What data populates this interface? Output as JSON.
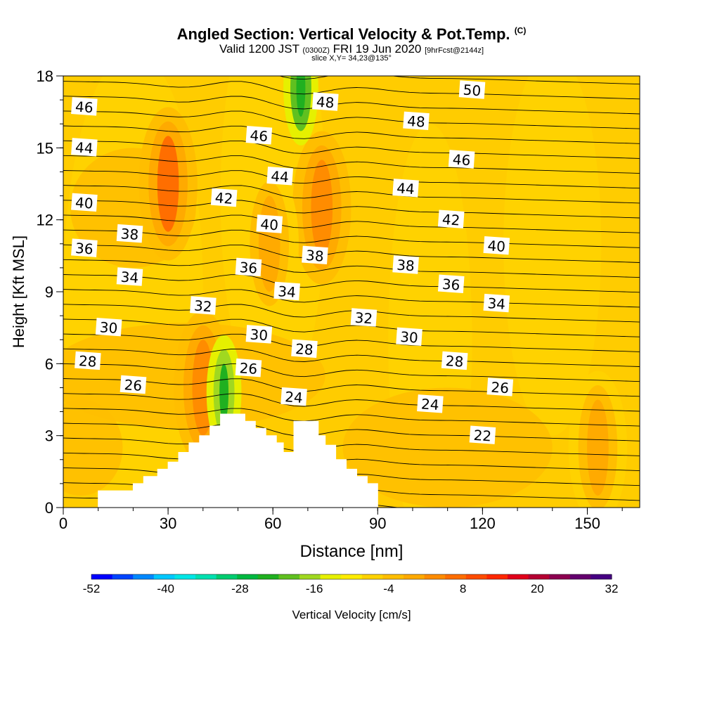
{
  "title": {
    "main": "Angled Section: Vertical Velocity & Pot.Temp.",
    "main_unit": "(C)",
    "valid_prefix": "Valid 1200 JST",
    "valid_utc": "(0300Z)",
    "valid_date": "FRI 19 Jun 2020",
    "forecast": "[9hrFcst@2144z]",
    "slice": "slice X,Y= 34,23@135°"
  },
  "chart_data": {
    "type": "heatmap",
    "xlabel": "Distance [nm]",
    "ylabel": "Height [Kft MSL]",
    "xlim": [
      0,
      165
    ],
    "ylim": [
      0,
      18
    ],
    "x_ticks": [
      0,
      30,
      60,
      90,
      120,
      150
    ],
    "y_ticks": [
      0,
      3,
      6,
      9,
      12,
      15,
      18
    ],
    "colorbar": {
      "label": "Vertical Velocity [cm/s]",
      "range": [
        -52,
        32
      ],
      "step": 4,
      "tick_labels": [
        "-52",
        "-40",
        "-28",
        "-16",
        "-4",
        "8",
        "20",
        "32"
      ],
      "colors": [
        "#0000ff",
        "#0044ff",
        "#0088ff",
        "#00c8ff",
        "#00e6e6",
        "#00e0b0",
        "#00cc70",
        "#00b840",
        "#20b020",
        "#60c020",
        "#a0d820",
        "#e6f000",
        "#ffec00",
        "#ffd200",
        "#ffbe00",
        "#ffaa00",
        "#ff8c00",
        "#ff6e00",
        "#ff4c00",
        "#ff2800",
        "#e0001a",
        "#b40032",
        "#8c0050",
        "#64006e",
        "#460082"
      ]
    },
    "terrain": [
      [
        10,
        0.7
      ],
      [
        20,
        0.7
      ],
      [
        20,
        1.0
      ],
      [
        23,
        1.0
      ],
      [
        23,
        1.3
      ],
      [
        27,
        1.3
      ],
      [
        27,
        1.6
      ],
      [
        30,
        1.6
      ],
      [
        30,
        1.9
      ],
      [
        33,
        1.9
      ],
      [
        33,
        2.3
      ],
      [
        36,
        2.3
      ],
      [
        36,
        2.7
      ],
      [
        39,
        2.7
      ],
      [
        39,
        3.0
      ],
      [
        42,
        3.0
      ],
      [
        42,
        3.4
      ],
      [
        45,
        3.4
      ],
      [
        45,
        3.9
      ],
      [
        52,
        3.9
      ],
      [
        52,
        3.6
      ],
      [
        55,
        3.6
      ],
      [
        55,
        3.3
      ],
      [
        58,
        3.3
      ],
      [
        58,
        3.0
      ],
      [
        61,
        3.0
      ],
      [
        61,
        2.7
      ],
      [
        63,
        2.7
      ],
      [
        63,
        2.3
      ],
      [
        66,
        2.3
      ],
      [
        66,
        3.6
      ],
      [
        73,
        3.6
      ],
      [
        73,
        3.0
      ],
      [
        75,
        3.0
      ],
      [
        75,
        2.6
      ],
      [
        78,
        2.6
      ],
      [
        78,
        2.0
      ],
      [
        81,
        2.0
      ],
      [
        81,
        1.6
      ],
      [
        84,
        1.6
      ],
      [
        84,
        1.3
      ],
      [
        87,
        1.3
      ],
      [
        87,
        1.0
      ],
      [
        90,
        1.0
      ]
    ],
    "isentropes": [
      {
        "theta": 22,
        "label_at": [
          120,
          3.0
        ]
      },
      {
        "theta": 24,
        "label_at": [
          66,
          4.6
        ]
      },
      {
        "theta": 24,
        "label_at": [
          105,
          4.3
        ]
      },
      {
        "theta": 26,
        "label_at": [
          20,
          5.1
        ]
      },
      {
        "theta": 26,
        "label_at": [
          53,
          5.8
        ]
      },
      {
        "theta": 26,
        "label_at": [
          125,
          5.0
        ]
      },
      {
        "theta": 28,
        "label_at": [
          7,
          6.1
        ]
      },
      {
        "theta": 28,
        "label_at": [
          69,
          6.6
        ]
      },
      {
        "theta": 28,
        "label_at": [
          112,
          6.1
        ]
      },
      {
        "theta": 30,
        "label_at": [
          13,
          7.5
        ]
      },
      {
        "theta": 30,
        "label_at": [
          56,
          7.2
        ]
      },
      {
        "theta": 30,
        "label_at": [
          99,
          7.1
        ]
      },
      {
        "theta": 32,
        "label_at": [
          40,
          8.4
        ]
      },
      {
        "theta": 32,
        "label_at": [
          86,
          7.9
        ]
      },
      {
        "theta": 34,
        "label_at": [
          19,
          9.6
        ]
      },
      {
        "theta": 34,
        "label_at": [
          64,
          9.0
        ]
      },
      {
        "theta": 34,
        "label_at": [
          124,
          8.5
        ]
      },
      {
        "theta": 36,
        "label_at": [
          6,
          10.8
        ]
      },
      {
        "theta": 36,
        "label_at": [
          53,
          10.0
        ]
      },
      {
        "theta": 36,
        "label_at": [
          111,
          9.3
        ]
      },
      {
        "theta": 38,
        "label_at": [
          19,
          11.4
        ]
      },
      {
        "theta": 38,
        "label_at": [
          72,
          10.5
        ]
      },
      {
        "theta": 38,
        "label_at": [
          98,
          10.1
        ]
      },
      {
        "theta": 40,
        "label_at": [
          6,
          12.7
        ]
      },
      {
        "theta": 40,
        "label_at": [
          59,
          11.8
        ]
      },
      {
        "theta": 40,
        "label_at": [
          124,
          10.9
        ]
      },
      {
        "theta": 42,
        "label_at": [
          46,
          12.9
        ]
      },
      {
        "theta": 42,
        "label_at": [
          111,
          12.0
        ]
      },
      {
        "theta": 44,
        "label_at": [
          6,
          15.0
        ]
      },
      {
        "theta": 44,
        "label_at": [
          62,
          13.8
        ]
      },
      {
        "theta": 44,
        "label_at": [
          98,
          13.3
        ]
      },
      {
        "theta": 46,
        "label_at": [
          6,
          16.7
        ]
      },
      {
        "theta": 46,
        "label_at": [
          56,
          15.5
        ]
      },
      {
        "theta": 46,
        "label_at": [
          114,
          14.5
        ]
      },
      {
        "theta": 48,
        "label_at": [
          75,
          16.9
        ]
      },
      {
        "theta": 48,
        "label_at": [
          101,
          16.1
        ]
      },
      {
        "theta": 50,
        "label_at": [
          117,
          17.4
        ]
      }
    ],
    "velocity_features": [
      {
        "name": "updraft",
        "x": 30,
        "y": 13.5,
        "value": 16
      },
      {
        "name": "updraft",
        "x": 74,
        "y": 12.5,
        "value": 14
      },
      {
        "name": "updraft",
        "x": 59,
        "y": 11.0,
        "value": 10
      },
      {
        "name": "updraft",
        "x": 40,
        "y": 5.0,
        "value": 14
      },
      {
        "name": "updraft",
        "x": 153,
        "y": 2.5,
        "value": 8
      },
      {
        "name": "downdraft",
        "x": 68,
        "y": 17.5,
        "value": -20
      },
      {
        "name": "downdraft",
        "x": 46,
        "y": 4.8,
        "value": -18
      }
    ]
  }
}
